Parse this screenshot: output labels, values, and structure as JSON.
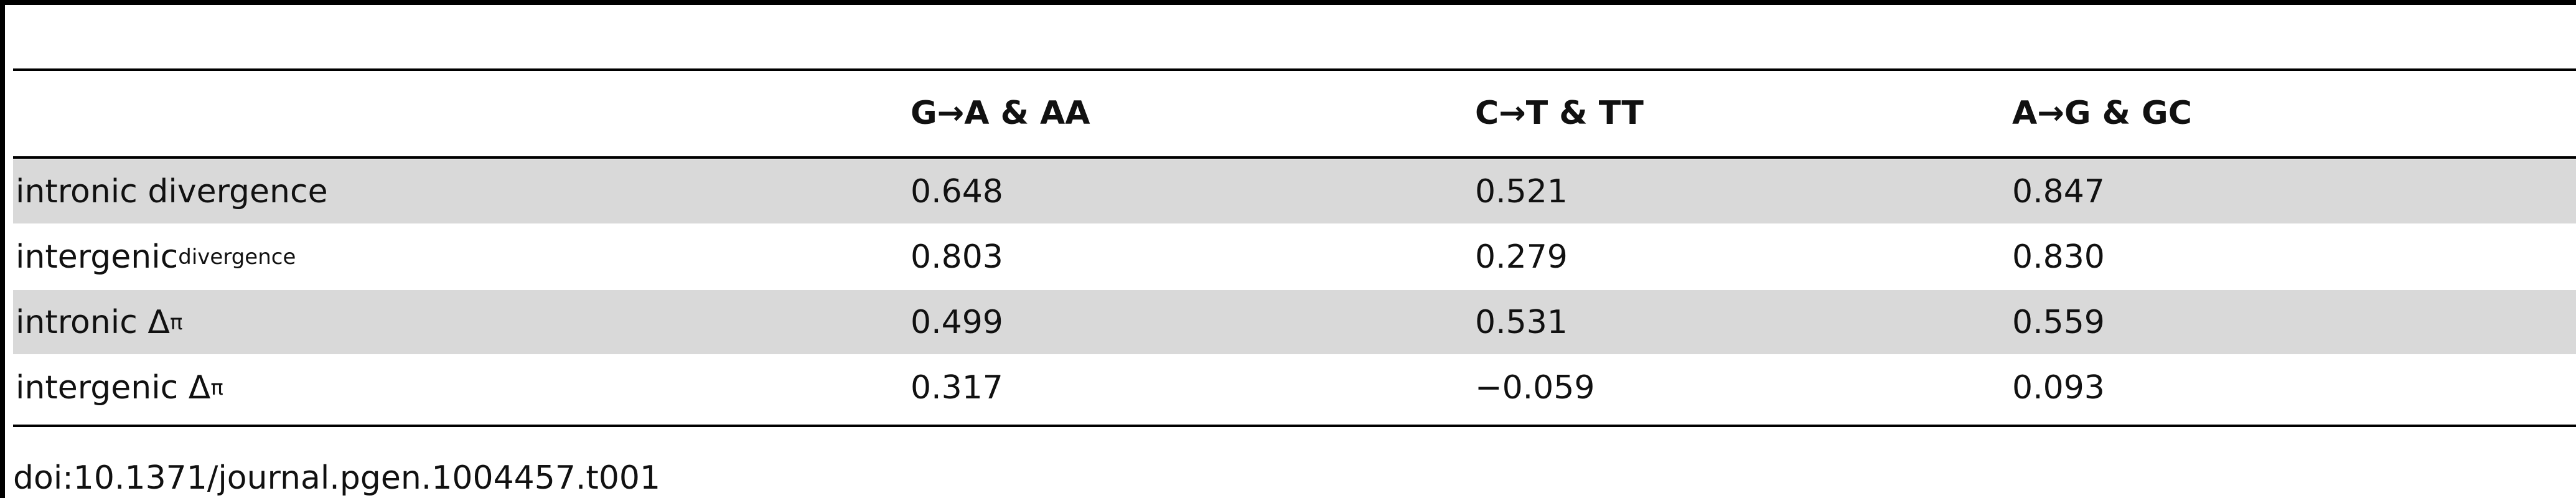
{
  "table": {
    "header": [
      "",
      "G→A & AA",
      "C→T & TT",
      "A→G & GC"
    ],
    "rows": [
      {
        "label": "intronic divergence",
        "values": [
          "0.648",
          "0.521",
          "0.847"
        ]
      },
      {
        "label": "intergenic",
        "sup": "divergence",
        "values": [
          "0.803",
          "0.279",
          "0.830"
        ]
      },
      {
        "label": "intronic Δ",
        "sub": "π",
        "values": [
          "0.499",
          "0.531",
          "0.559"
        ]
      },
      {
        "label": "intergenic Δ",
        "sub": "π",
        "values": [
          "0.317",
          "−0.059",
          "0.093"
        ]
      }
    ]
  },
  "footer": {
    "doi": "doi:10.1371/journal.pgen.1004457.t001"
  }
}
